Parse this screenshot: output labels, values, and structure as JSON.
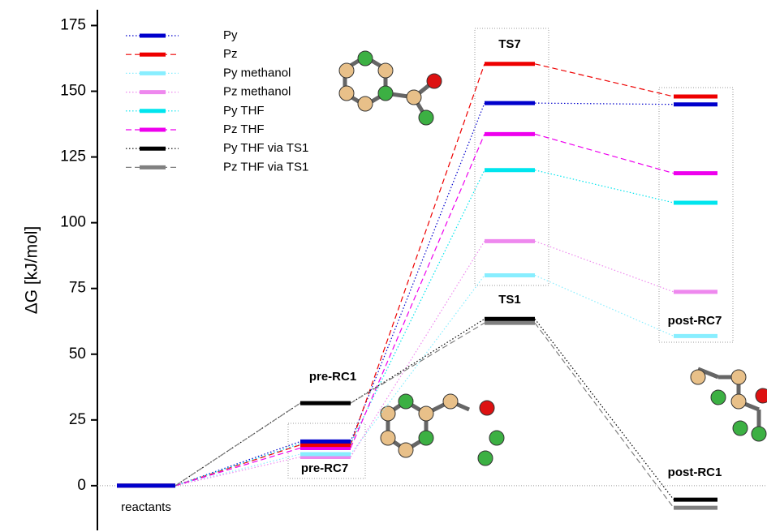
{
  "chart_data": {
    "type": "energy-profile",
    "y_label": "ΔG [kJ/mol]",
    "categories": [
      "reactants",
      null,
      null,
      null
    ],
    "annotations": [
      "pre-RC1",
      "pre-RC7",
      "TS7",
      "TS1",
      "post-RC7",
      "post-RC1"
    ],
    "ylim": [
      -17,
      181
    ],
    "yticks": [
      0,
      25,
      50,
      75,
      100,
      125,
      150,
      175
    ],
    "series": [
      {
        "name": "Py",
        "color": "#0000cc",
        "linestyle": "dotted",
        "values": [
          0,
          16.8,
          145.5,
          145
        ]
      },
      {
        "name": "Pz",
        "color": "#ee0000",
        "linestyle": "dashed",
        "values": [
          0,
          15.5,
          160.4,
          148
        ]
      },
      {
        "name": "Py methanol",
        "color": "#88eeff",
        "linestyle": "dotted",
        "values": [
          0,
          12,
          80,
          56.9
        ]
      },
      {
        "name": "Pz methanol",
        "color": "#ee88ee",
        "linestyle": "dotted",
        "values": [
          0,
          10.9,
          93,
          73.7
        ]
      },
      {
        "name": "Py THF",
        "color": "#00e5ee",
        "linestyle": "dotted",
        "values": [
          0,
          16,
          120,
          107.6
        ]
      },
      {
        "name": "Pz THF",
        "color": "#ee00ee",
        "linestyle": "dashed",
        "values": [
          0,
          14.3,
          133.7,
          118.8
        ]
      },
      {
        "name": "Py THF via TS1",
        "color": "#000000",
        "linestyle": "dotted",
        "values": [
          0,
          31.4,
          63.4,
          -5.3
        ]
      },
      {
        "name": "Pz THF via TS1",
        "color": "#808080",
        "linestyle": "dashed",
        "values": [
          0,
          31.4,
          61.9,
          -8.4
        ]
      }
    ]
  }
}
